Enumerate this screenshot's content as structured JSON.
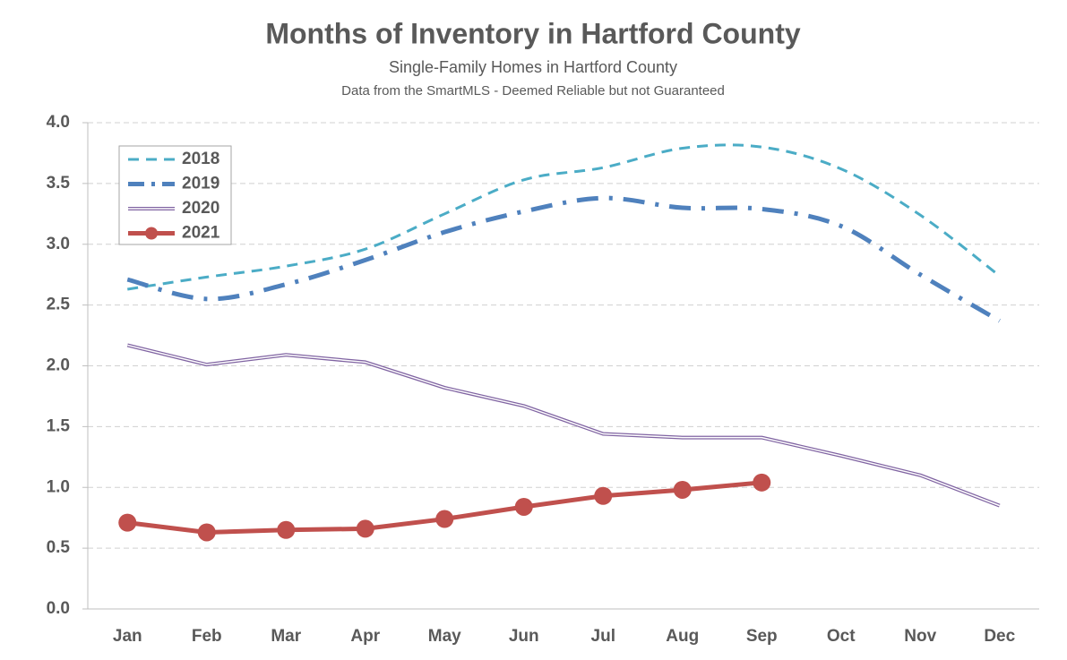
{
  "chart_data": {
    "type": "line",
    "title": "Months of Inventory in Hartford County",
    "subtitle": "Single-Family Homes in Hartford County",
    "note": "Data from the SmartMLS - Deemed Reliable but not Guaranteed",
    "categories": [
      "Jan",
      "Feb",
      "Mar",
      "Apr",
      "May",
      "Jun",
      "Jul",
      "Aug",
      "Sep",
      "Oct",
      "Nov",
      "Dec"
    ],
    "series": [
      {
        "name": "2018",
        "color": "#4bacc6",
        "line_style": "dashed",
        "smooth": true,
        "values": [
          2.63,
          2.73,
          2.82,
          2.96,
          3.25,
          3.53,
          3.63,
          3.79,
          3.8,
          3.62,
          3.24,
          2.74
        ]
      },
      {
        "name": "2019",
        "color": "#4f81bd",
        "line_style": "dash-dot",
        "smooth": true,
        "values": [
          2.71,
          2.55,
          2.67,
          2.87,
          3.1,
          3.27,
          3.38,
          3.3,
          3.29,
          3.15,
          2.75,
          2.37
        ]
      },
      {
        "name": "2020",
        "color": "#8064a2",
        "line_style": "double",
        "smooth": false,
        "values": [
          2.17,
          2.01,
          2.09,
          2.03,
          1.82,
          1.67,
          1.44,
          1.41,
          1.41,
          1.26,
          1.1,
          0.85
        ]
      },
      {
        "name": "2021",
        "color": "#c0504d",
        "line_style": "solid-marker",
        "smooth": false,
        "values": [
          0.71,
          0.63,
          0.65,
          0.66,
          0.74,
          0.84,
          0.93,
          0.98,
          1.04,
          null,
          null,
          null
        ]
      }
    ],
    "ylim": [
      0,
      4
    ],
    "yticks": [
      {
        "value": 0,
        "label": "0.0"
      },
      0.5,
      {
        "value": 1,
        "label": "1.0"
      },
      1.5,
      {
        "value": 2,
        "label": "2.0"
      },
      2.5,
      {
        "value": 3,
        "label": "3.0"
      },
      3.5,
      {
        "value": 4,
        "label": "4.0"
      }
    ],
    "grid": true,
    "legend": "top-left"
  }
}
